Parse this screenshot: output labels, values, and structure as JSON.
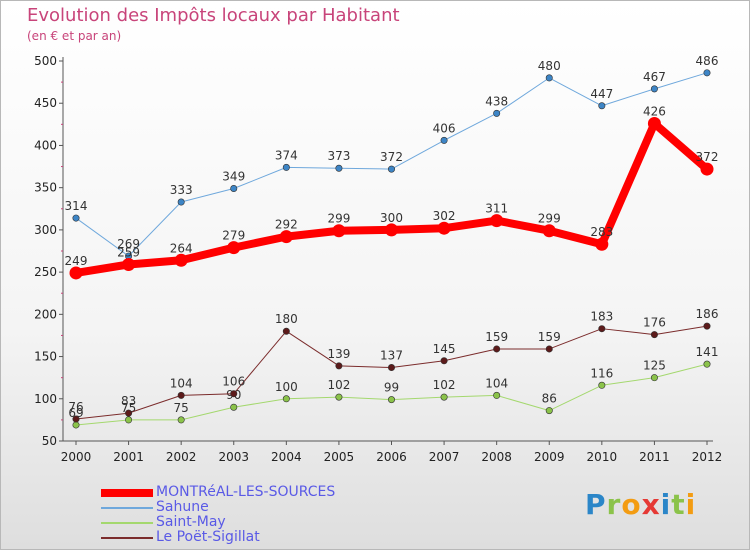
{
  "title": "Evolution des Impôts locaux par Habitant",
  "subtitle": "(en € et par an)",
  "logo_text": "Proxiti",
  "chart_data": {
    "type": "line",
    "title": "Evolution des Impôts locaux par Habitant",
    "subtitle": "(en € et par an)",
    "xlabel": "",
    "ylabel": "",
    "x": [
      "2000",
      "2001",
      "2002",
      "2003",
      "2004",
      "2005",
      "2006",
      "2007",
      "2008",
      "2009",
      "2010",
      "2011",
      "2012"
    ],
    "y_ticks": [
      "50",
      "100",
      "150",
      "200",
      "250",
      "300",
      "350",
      "400",
      "450",
      "500"
    ],
    "ylim": [
      50,
      500
    ],
    "grid": false,
    "legend_position": "bottom-left",
    "series": [
      {
        "name": "MONTRéAL-LES-SOURCES",
        "color": "#ff0000",
        "marker": "#ff0000",
        "width": 8,
        "values": [
          249,
          259,
          264,
          279,
          292,
          299,
          300,
          302,
          311,
          299,
          283,
          426,
          372
        ],
        "labels": [
          "249",
          "259",
          "264",
          "279",
          "292",
          "299",
          "300",
          "302",
          "311",
          "299",
          "283",
          "426",
          "372"
        ]
      },
      {
        "name": "Sahune",
        "color": "#6fa8dc",
        "marker": "#3d85c6",
        "width": 1,
        "values": [
          314,
          269,
          333,
          349,
          374,
          373,
          372,
          406,
          438,
          480,
          447,
          467,
          486
        ],
        "labels": [
          "314",
          "269",
          "333",
          "349",
          "374",
          "373",
          "372",
          "406",
          "438",
          "480",
          "447",
          "467",
          "486"
        ]
      },
      {
        "name": "Saint-May",
        "color": "#a4d86e",
        "marker": "#8bc34a",
        "width": 1,
        "values": [
          69,
          75,
          75,
          90,
          100,
          102,
          99,
          102,
          104,
          86,
          116,
          125,
          141
        ],
        "labels": [
          "69",
          "75",
          "75",
          "90",
          "100",
          "102",
          "99",
          "102",
          "104",
          "86",
          "116",
          "125",
          "141"
        ]
      },
      {
        "name": "Le Poët-Sigillat",
        "color": "#7b2c2c",
        "marker": "#5c1a1a",
        "width": 1,
        "values": [
          76,
          83,
          104,
          106,
          180,
          139,
          137,
          145,
          159,
          159,
          183,
          176,
          186
        ],
        "labels": [
          "76",
          "83",
          "104",
          "106",
          "180",
          "139",
          "137",
          "145",
          "159",
          "159",
          "183",
          "176",
          "186"
        ]
      }
    ]
  }
}
